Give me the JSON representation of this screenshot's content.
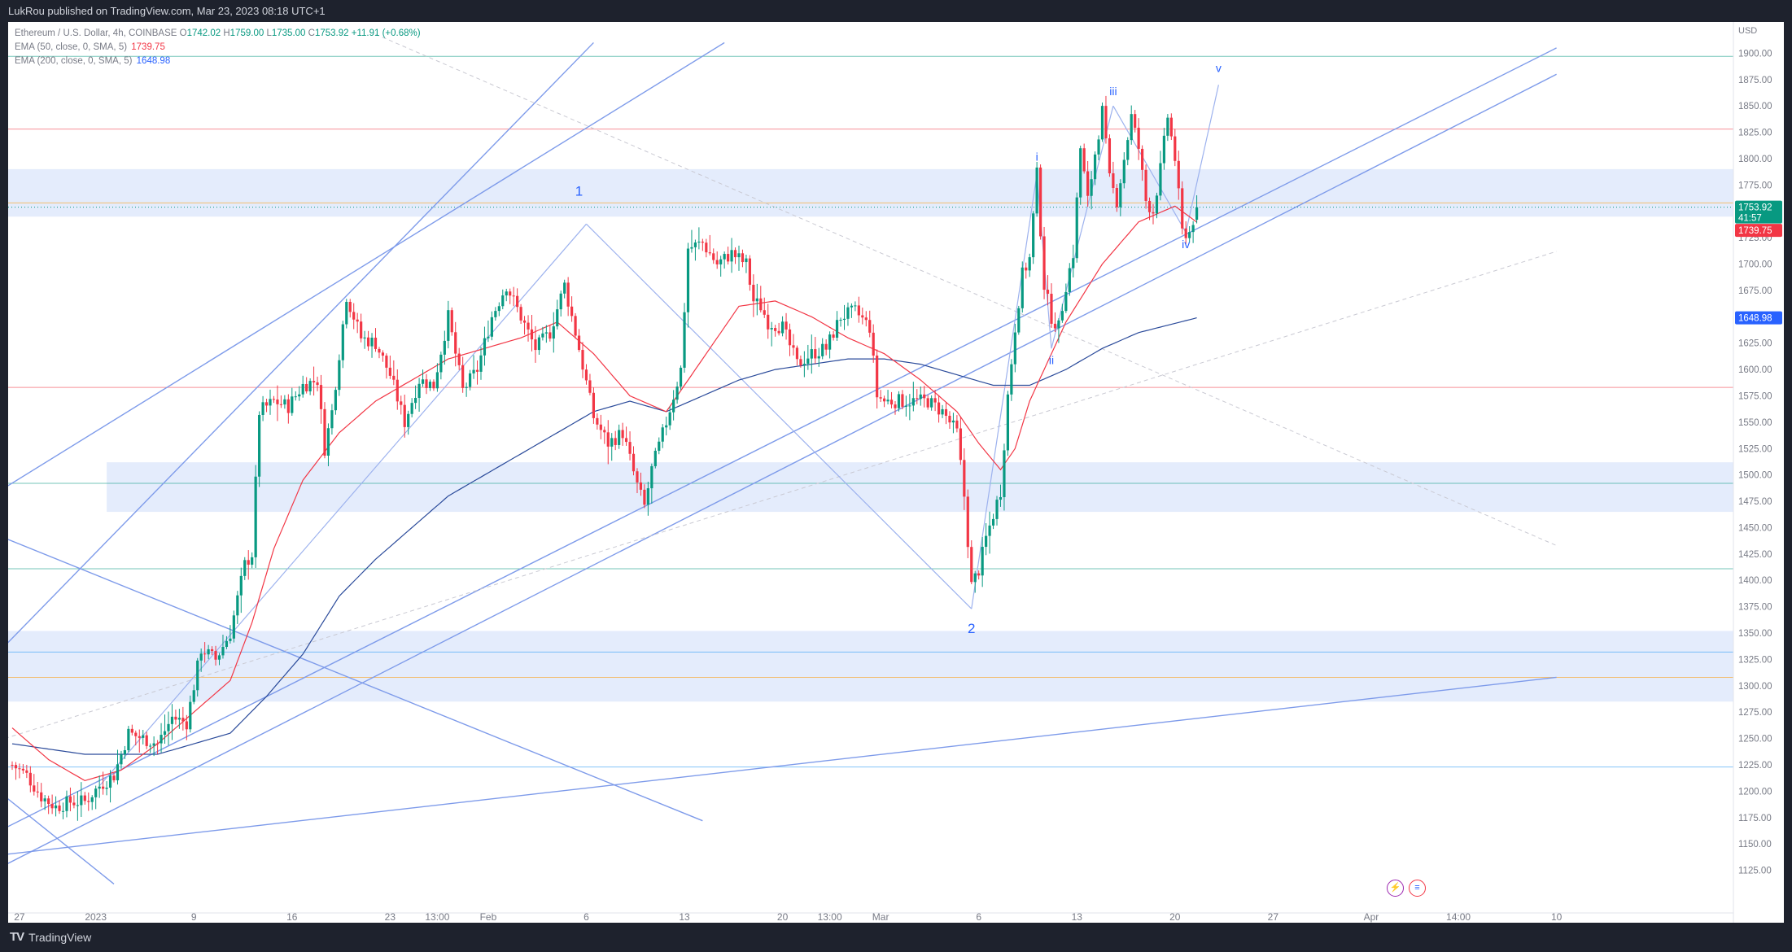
{
  "header": {
    "published_by": "LukRou published on TradingView.com, Mar 23, 2023 08:18 UTC+1"
  },
  "legend": {
    "symbol": "Ethereum / U.S. Dollar, 4h, COINBASE",
    "ohlc": {
      "o_label": "O",
      "o": "1742.02",
      "h_label": "H",
      "h": "1759.00",
      "l_label": "L",
      "l": "1735.00",
      "c_label": "C",
      "c": "1753.92",
      "change": "+11.91 (+0.68%)"
    },
    "ema50": {
      "label": "EMA (50, close, 0, SMA, 5)",
      "value": "1739.75"
    },
    "ema200": {
      "label": "EMA (200, close, 0, SMA, 5)",
      "value": "1648.98"
    }
  },
  "footer": {
    "brand": "TradingView"
  },
  "icons": [
    "lightning-icon",
    "us-flag-icon"
  ],
  "colors": {
    "up": "#089981",
    "down": "#f23645",
    "ema50": "#f23645",
    "ema200": "#2a4a9a",
    "trendline": "#7e9bea",
    "zone": "#dbe6fb",
    "price_tag": "#089981",
    "ema50_tag": "#f23645",
    "ema200_tag": "#2962ff"
  },
  "chart_data": {
    "type": "candlestick",
    "symbol": "Ethereum / U.S. Dollar",
    "timeframe": "4h",
    "axis_unit": "USD",
    "ylim": [
      1110,
      1925
    ],
    "y_ticks": [
      1125,
      1150,
      1175,
      1200,
      1225,
      1250,
      1275,
      1300,
      1325,
      1350,
      1375,
      1400,
      1425,
      1450,
      1475,
      1500,
      1525,
      1550,
      1575,
      1600,
      1625,
      1650,
      1675,
      1700,
      1725,
      1750,
      1775,
      1800,
      1825,
      1850,
      1875,
      1900
    ],
    "x_ticks": [
      {
        "label": "27",
        "bar": 2
      },
      {
        "label": "2023",
        "bar": 23
      },
      {
        "label": "9",
        "bar": 50
      },
      {
        "label": "16",
        "bar": 77
      },
      {
        "label": "23",
        "bar": 104
      },
      {
        "label": "13:00",
        "bar": 117
      },
      {
        "label": "Feb",
        "bar": 131
      },
      {
        "label": "6",
        "bar": 158
      },
      {
        "label": "13",
        "bar": 185
      },
      {
        "label": "20",
        "bar": 212
      },
      {
        "label": "13:00",
        "bar": 225
      },
      {
        "label": "Mar",
        "bar": 239
      },
      {
        "label": "6",
        "bar": 266
      },
      {
        "label": "13",
        "bar": 293
      },
      {
        "label": "20",
        "bar": 320
      },
      {
        "label": "27",
        "bar": 347
      },
      {
        "label": "Apr",
        "bar": 374
      },
      {
        "label": "14:00",
        "bar": 398
      },
      {
        "label": "10",
        "bar": 425
      }
    ],
    "price_anchors": [
      [
        0,
        1225
      ],
      [
        4,
        1215
      ],
      [
        8,
        1195
      ],
      [
        12,
        1185
      ],
      [
        16,
        1190
      ],
      [
        20,
        1190
      ],
      [
        24,
        1205
      ],
      [
        28,
        1215
      ],
      [
        32,
        1255
      ],
      [
        36,
        1250
      ],
      [
        40,
        1245
      ],
      [
        44,
        1270
      ],
      [
        48,
        1265
      ],
      [
        52,
        1335
      ],
      [
        56,
        1325
      ],
      [
        60,
        1350
      ],
      [
        64,
        1415
      ],
      [
        66,
        1425
      ],
      [
        68,
        1560
      ],
      [
        72,
        1570
      ],
      [
        76,
        1565
      ],
      [
        80,
        1585
      ],
      [
        84,
        1590
      ],
      [
        86,
        1525
      ],
      [
        88,
        1560
      ],
      [
        92,
        1670
      ],
      [
        96,
        1630
      ],
      [
        100,
        1625
      ],
      [
        104,
        1595
      ],
      [
        108,
        1550
      ],
      [
        112,
        1590
      ],
      [
        116,
        1585
      ],
      [
        120,
        1650
      ],
      [
        124,
        1580
      ],
      [
        128,
        1600
      ],
      [
        132,
        1650
      ],
      [
        136,
        1680
      ],
      [
        140,
        1650
      ],
      [
        144,
        1620
      ],
      [
        148,
        1635
      ],
      [
        152,
        1680
      ],
      [
        156,
        1620
      ],
      [
        160,
        1555
      ],
      [
        164,
        1530
      ],
      [
        168,
        1540
      ],
      [
        172,
        1490
      ],
      [
        174,
        1470
      ],
      [
        176,
        1505
      ],
      [
        180,
        1550
      ],
      [
        184,
        1600
      ],
      [
        186,
        1715
      ],
      [
        190,
        1720
      ],
      [
        194,
        1700
      ],
      [
        198,
        1710
      ],
      [
        202,
        1700
      ],
      [
        204,
        1665
      ],
      [
        206,
        1660
      ],
      [
        208,
        1645
      ],
      [
        212,
        1640
      ],
      [
        216,
        1605
      ],
      [
        220,
        1615
      ],
      [
        224,
        1620
      ],
      [
        228,
        1650
      ],
      [
        232,
        1655
      ],
      [
        236,
        1640
      ],
      [
        238,
        1575
      ],
      [
        240,
        1570
      ],
      [
        244,
        1570
      ],
      [
        248,
        1570
      ],
      [
        252,
        1570
      ],
      [
        256,
        1560
      ],
      [
        260,
        1540
      ],
      [
        262,
        1480
      ],
      [
        264,
        1395
      ],
      [
        266,
        1410
      ],
      [
        268,
        1440
      ],
      [
        272,
        1485
      ],
      [
        274,
        1575
      ],
      [
        276,
        1640
      ],
      [
        278,
        1690
      ],
      [
        280,
        1705
      ],
      [
        282,
        1785
      ],
      [
        284,
        1680
      ],
      [
        286,
        1650
      ],
      [
        288,
        1640
      ],
      [
        290,
        1680
      ],
      [
        292,
        1710
      ],
      [
        294,
        1810
      ],
      [
        296,
        1760
      ],
      [
        298,
        1805
      ],
      [
        300,
        1845
      ],
      [
        302,
        1780
      ],
      [
        304,
        1760
      ],
      [
        306,
        1800
      ],
      [
        308,
        1840
      ],
      [
        310,
        1810
      ],
      [
        312,
        1760
      ],
      [
        314,
        1750
      ],
      [
        316,
        1790
      ],
      [
        318,
        1840
      ],
      [
        320,
        1800
      ],
      [
        322,
        1730
      ],
      [
        324,
        1730
      ],
      [
        326,
        1753.92
      ]
    ],
    "last_bar": 326,
    "series": [
      {
        "name": "EMA (50, close, 0, SMA, 5)",
        "last": 1739.75
      },
      {
        "name": "EMA (200, close, 0, SMA, 5)",
        "last": 1648.98
      }
    ],
    "ema50_anchors": [
      [
        0,
        1260
      ],
      [
        10,
        1230
      ],
      [
        20,
        1210
      ],
      [
        30,
        1220
      ],
      [
        40,
        1245
      ],
      [
        50,
        1275
      ],
      [
        60,
        1305
      ],
      [
        66,
        1360
      ],
      [
        72,
        1430
      ],
      [
        80,
        1495
      ],
      [
        90,
        1540
      ],
      [
        100,
        1570
      ],
      [
        110,
        1590
      ],
      [
        120,
        1610
      ],
      [
        130,
        1620
      ],
      [
        140,
        1630
      ],
      [
        150,
        1645
      ],
      [
        160,
        1615
      ],
      [
        170,
        1575
      ],
      [
        180,
        1560
      ],
      [
        190,
        1610
      ],
      [
        200,
        1660
      ],
      [
        210,
        1665
      ],
      [
        220,
        1650
      ],
      [
        230,
        1630
      ],
      [
        240,
        1615
      ],
      [
        250,
        1590
      ],
      [
        260,
        1560
      ],
      [
        266,
        1530
      ],
      [
        272,
        1505
      ],
      [
        276,
        1525
      ],
      [
        280,
        1570
      ],
      [
        290,
        1645
      ],
      [
        300,
        1700
      ],
      [
        310,
        1740
      ],
      [
        320,
        1755
      ],
      [
        326,
        1739.75
      ]
    ],
    "ema200_anchors": [
      [
        0,
        1245
      ],
      [
        20,
        1235
      ],
      [
        40,
        1235
      ],
      [
        60,
        1255
      ],
      [
        70,
        1290
      ],
      [
        80,
        1330
      ],
      [
        90,
        1385
      ],
      [
        100,
        1420
      ],
      [
        110,
        1450
      ],
      [
        120,
        1480
      ],
      [
        130,
        1500
      ],
      [
        140,
        1520
      ],
      [
        150,
        1540
      ],
      [
        160,
        1560
      ],
      [
        170,
        1570
      ],
      [
        180,
        1560
      ],
      [
        190,
        1575
      ],
      [
        200,
        1590
      ],
      [
        210,
        1600
      ],
      [
        220,
        1605
      ],
      [
        230,
        1610
      ],
      [
        240,
        1610
      ],
      [
        250,
        1605
      ],
      [
        260,
        1595
      ],
      [
        270,
        1585
      ],
      [
        280,
        1585
      ],
      [
        290,
        1600
      ],
      [
        300,
        1620
      ],
      [
        310,
        1635
      ],
      [
        326,
        1648.98
      ]
    ],
    "horizontal_levels": [
      {
        "price": 1897,
        "color": "#089981"
      },
      {
        "price": 1828,
        "color": "#f23645"
      },
      {
        "price": 1758,
        "color": "#ff9800"
      },
      {
        "price": 1583,
        "color": "#f23645"
      },
      {
        "price": 1492,
        "color": "#089981"
      },
      {
        "price": 1411,
        "color": "#089981"
      },
      {
        "price": 1332,
        "color": "#2196f3"
      },
      {
        "price": 1308,
        "color": "#ff9800"
      },
      {
        "price": 1223,
        "color": "#2196f3"
      }
    ],
    "zones": [
      {
        "from": 1745,
        "to": 1790,
        "start_bar": -2
      },
      {
        "from": 1465,
        "to": 1512,
        "start_bar": 26
      },
      {
        "from": 1285,
        "to": 1352,
        "start_bar": -2
      }
    ],
    "trendlines": [
      {
        "points": [
          [
            -2,
            1488
          ],
          [
            196,
            1910
          ]
        ],
        "style": "solid"
      },
      {
        "points": [
          [
            -2,
            1338
          ],
          [
            160,
            1910
          ]
        ],
        "style": "solid"
      },
      {
        "points": [
          [
            -2,
            1165
          ],
          [
            425,
            1905
          ]
        ],
        "style": "solid"
      },
      {
        "points": [
          [
            -2,
            1195
          ],
          [
            28,
            1112
          ]
        ],
        "style": "solid"
      },
      {
        "points": [
          [
            -2,
            1440
          ],
          [
            190,
            1172
          ]
        ],
        "style": "solid"
      },
      {
        "points": [
          [
            -2,
            1140
          ],
          [
            425,
            1308
          ]
        ],
        "style": "solid"
      },
      {
        "points": [
          [
            -2,
            1130
          ],
          [
            425,
            1880
          ]
        ],
        "style": "solid"
      },
      {
        "points": [
          [
            -2,
            1250
          ],
          [
            425,
            1712
          ]
        ],
        "style": "dashed"
      },
      {
        "points": [
          [
            100,
            1918
          ],
          [
            425,
            1433
          ]
        ],
        "style": "dashed"
      }
    ],
    "wave_lines": [
      [
        [
          24,
          1205
        ],
        [
          158,
          1738
        ]
      ],
      [
        [
          158,
          1738
        ],
        [
          264,
          1373
        ]
      ],
      [
        [
          264,
          1373
        ],
        [
          282,
          1785
        ]
      ],
      [
        [
          282,
          1785
        ],
        [
          286,
          1620
        ]
      ],
      [
        [
          286,
          1620
        ],
        [
          303,
          1850
        ]
      ],
      [
        [
          303,
          1850
        ],
        [
          323,
          1730
        ]
      ],
      [
        [
          323,
          1730
        ],
        [
          332,
          1870
        ]
      ]
    ],
    "annotations": [
      {
        "text": "1",
        "bar": 156,
        "price": 1765,
        "size": 17
      },
      {
        "text": "2",
        "bar": 264,
        "price": 1350,
        "size": 17
      },
      {
        "text": "i",
        "bar": 282,
        "price": 1798,
        "size": 14
      },
      {
        "text": "ii",
        "bar": 286,
        "price": 1605,
        "size": 14
      },
      {
        "text": "iii",
        "bar": 303,
        "price": 1860,
        "size": 14
      },
      {
        "text": "iv",
        "bar": 323,
        "price": 1715,
        "size": 14
      },
      {
        "text": "v",
        "bar": 332,
        "price": 1882,
        "size": 14
      }
    ],
    "price_tags": [
      {
        "label": "1753.92",
        "sub": "41:57",
        "price": 1753.92,
        "kind": "price"
      },
      {
        "label": "1739.75",
        "price": 1732,
        "kind": "ema50"
      },
      {
        "label": "1648.98",
        "price": 1648.98,
        "kind": "ema200"
      }
    ]
  }
}
